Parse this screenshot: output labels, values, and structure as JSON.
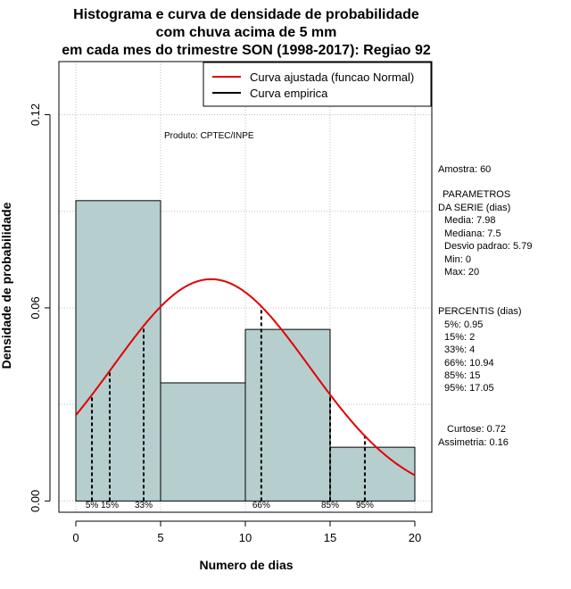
{
  "chart_data": {
    "type": "bar",
    "title_lines": [
      "Histograma e curva de densidade de probabilidade",
      "com chuva acima de 5 mm",
      "em cada mes do trimestre SON (1998-2017): Regiao 92"
    ],
    "xlabel": "Numero de dias",
    "ylabel": "Densidade de probabilidade",
    "xlim": [
      -1,
      21
    ],
    "ylim": [
      -0.0035,
      0.1365
    ],
    "x_ticks": [
      0,
      5,
      10,
      15,
      20
    ],
    "y_ticks": [
      0.0,
      0.06,
      0.12
    ],
    "y_tick_labels": [
      "0.00",
      "0.06",
      "0.12"
    ],
    "grid": true,
    "bins": [
      {
        "from": 0,
        "to": 5,
        "density": 0.0933
      },
      {
        "from": 5,
        "to": 10,
        "density": 0.0367
      },
      {
        "from": 10,
        "to": 15,
        "density": 0.0533
      },
      {
        "from": 15,
        "to": 20,
        "density": 0.0167
      }
    ],
    "bar_color": "#b6cece",
    "normal_fit": {
      "mean": 7.98,
      "sd": 5.79,
      "color": "#e00000",
      "x_range": [
        0,
        20
      ]
    },
    "percentile_lines": [
      {
        "label": "5%",
        "x": 0.95
      },
      {
        "label": "15%",
        "x": 2
      },
      {
        "label": "33%",
        "x": 4
      },
      {
        "label": "66%",
        "x": 10.94
      },
      {
        "label": "85%",
        "x": 15
      },
      {
        "label": "95%",
        "x": 17.05
      }
    ],
    "legend": [
      {
        "label": "Curva ajustada (funcao Normal)",
        "color": "#e00000"
      },
      {
        "label": "Curva empirica",
        "color": "#000000"
      }
    ],
    "annotation": "Produto: CPTEC/INPE"
  },
  "stats_panel": {
    "sample": "Amostra: 60",
    "params_title_1": "PARAMETROS",
    "params_title_2": "DA SERIE (dias)",
    "media": "Media: 7.98",
    "mediana": "Mediana: 7.5",
    "desvio": "Desvio padrao: 5.79",
    "min": "Min: 0",
    "max": "Max: 20",
    "percentis_title": "PERCENTIS (dias)",
    "p5": "5%: 0.95",
    "p15": "15%: 2",
    "p33": "33%: 4",
    "p66": "66%: 10.94",
    "p85": "85%: 15",
    "p95": "95%: 17.05",
    "curtose": "Curtose: 0.72",
    "assimetria": "Assimetria: 0.16"
  }
}
